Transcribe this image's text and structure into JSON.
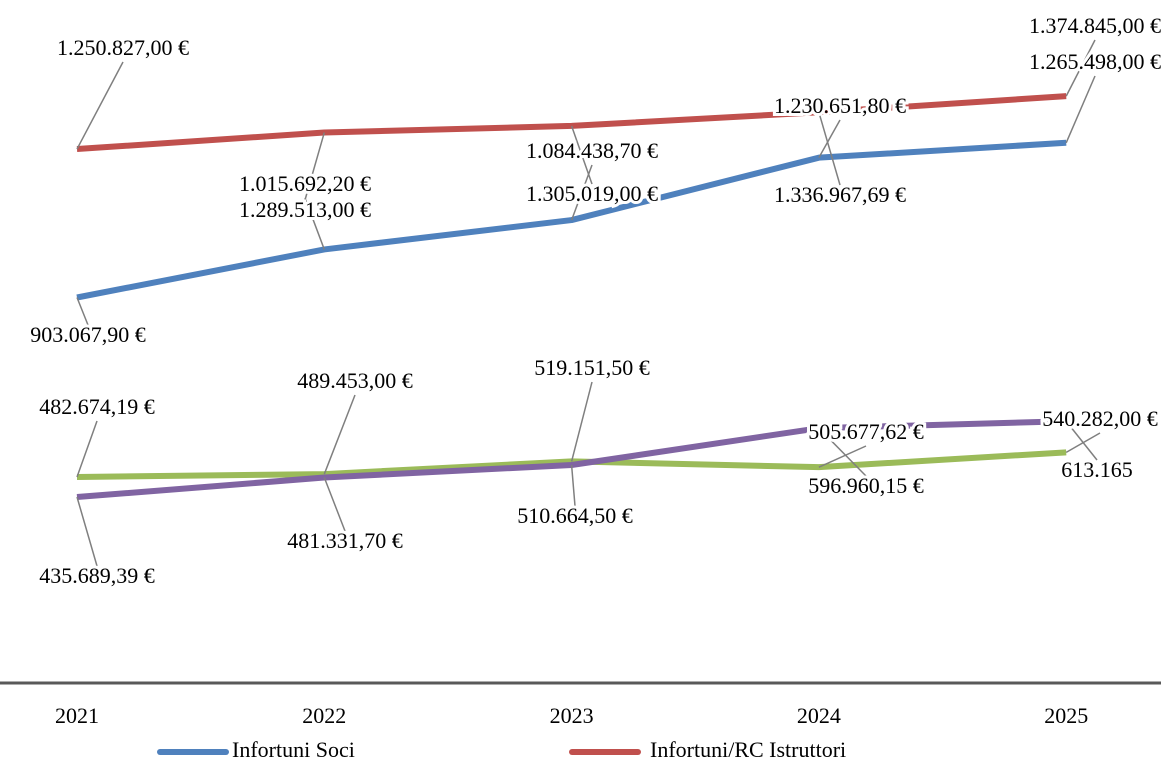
{
  "chart_data": {
    "type": "line",
    "categories": [
      "2021",
      "2022",
      "2023",
      "2024",
      "2025"
    ],
    "ylim": [
      0,
      1600000
    ],
    "series": [
      {
        "name": "Infortuni Soci",
        "color": "#4f81bd",
        "values": [
          903067.9,
          1015692.2,
          1084438.7,
          1230651.8,
          1265498
        ],
        "value_labels": [
          "903.067,90 €",
          "1.015.692,20 €",
          "1.084.438,70 €",
          "1.230.651,80 €",
          "1.265.498,00 €"
        ]
      },
      {
        "name": "Infortuni/RC Istruttori",
        "color": "#c0504d",
        "values": [
          1250827,
          1289513,
          1305019,
          1336967.69,
          1374845
        ],
        "value_labels": [
          "1.250.827,00 €",
          "1.289.513,00 €",
          "1.305.019,00 €",
          "1.336.967,69 €",
          "1.374.845,00 €"
        ]
      },
      {
        "color": "#9bbb59",
        "values": [
          482674.19,
          489453,
          519151.5,
          505677.62,
          540282
        ],
        "value_labels": [
          "482.674,19 €",
          "489.453,00 €",
          "519.151,50 €",
          "505.677,62 €",
          "540.282,00 €"
        ]
      },
      {
        "color": "#8064a2",
        "values": [
          435689.39,
          481331.7,
          510664.5,
          596960.15,
          613165
        ],
        "value_labels": [
          "435.689,39 €",
          "481.331,70 €",
          "510.664,50 €",
          "596.960,15 €",
          "613.165"
        ]
      }
    ]
  }
}
